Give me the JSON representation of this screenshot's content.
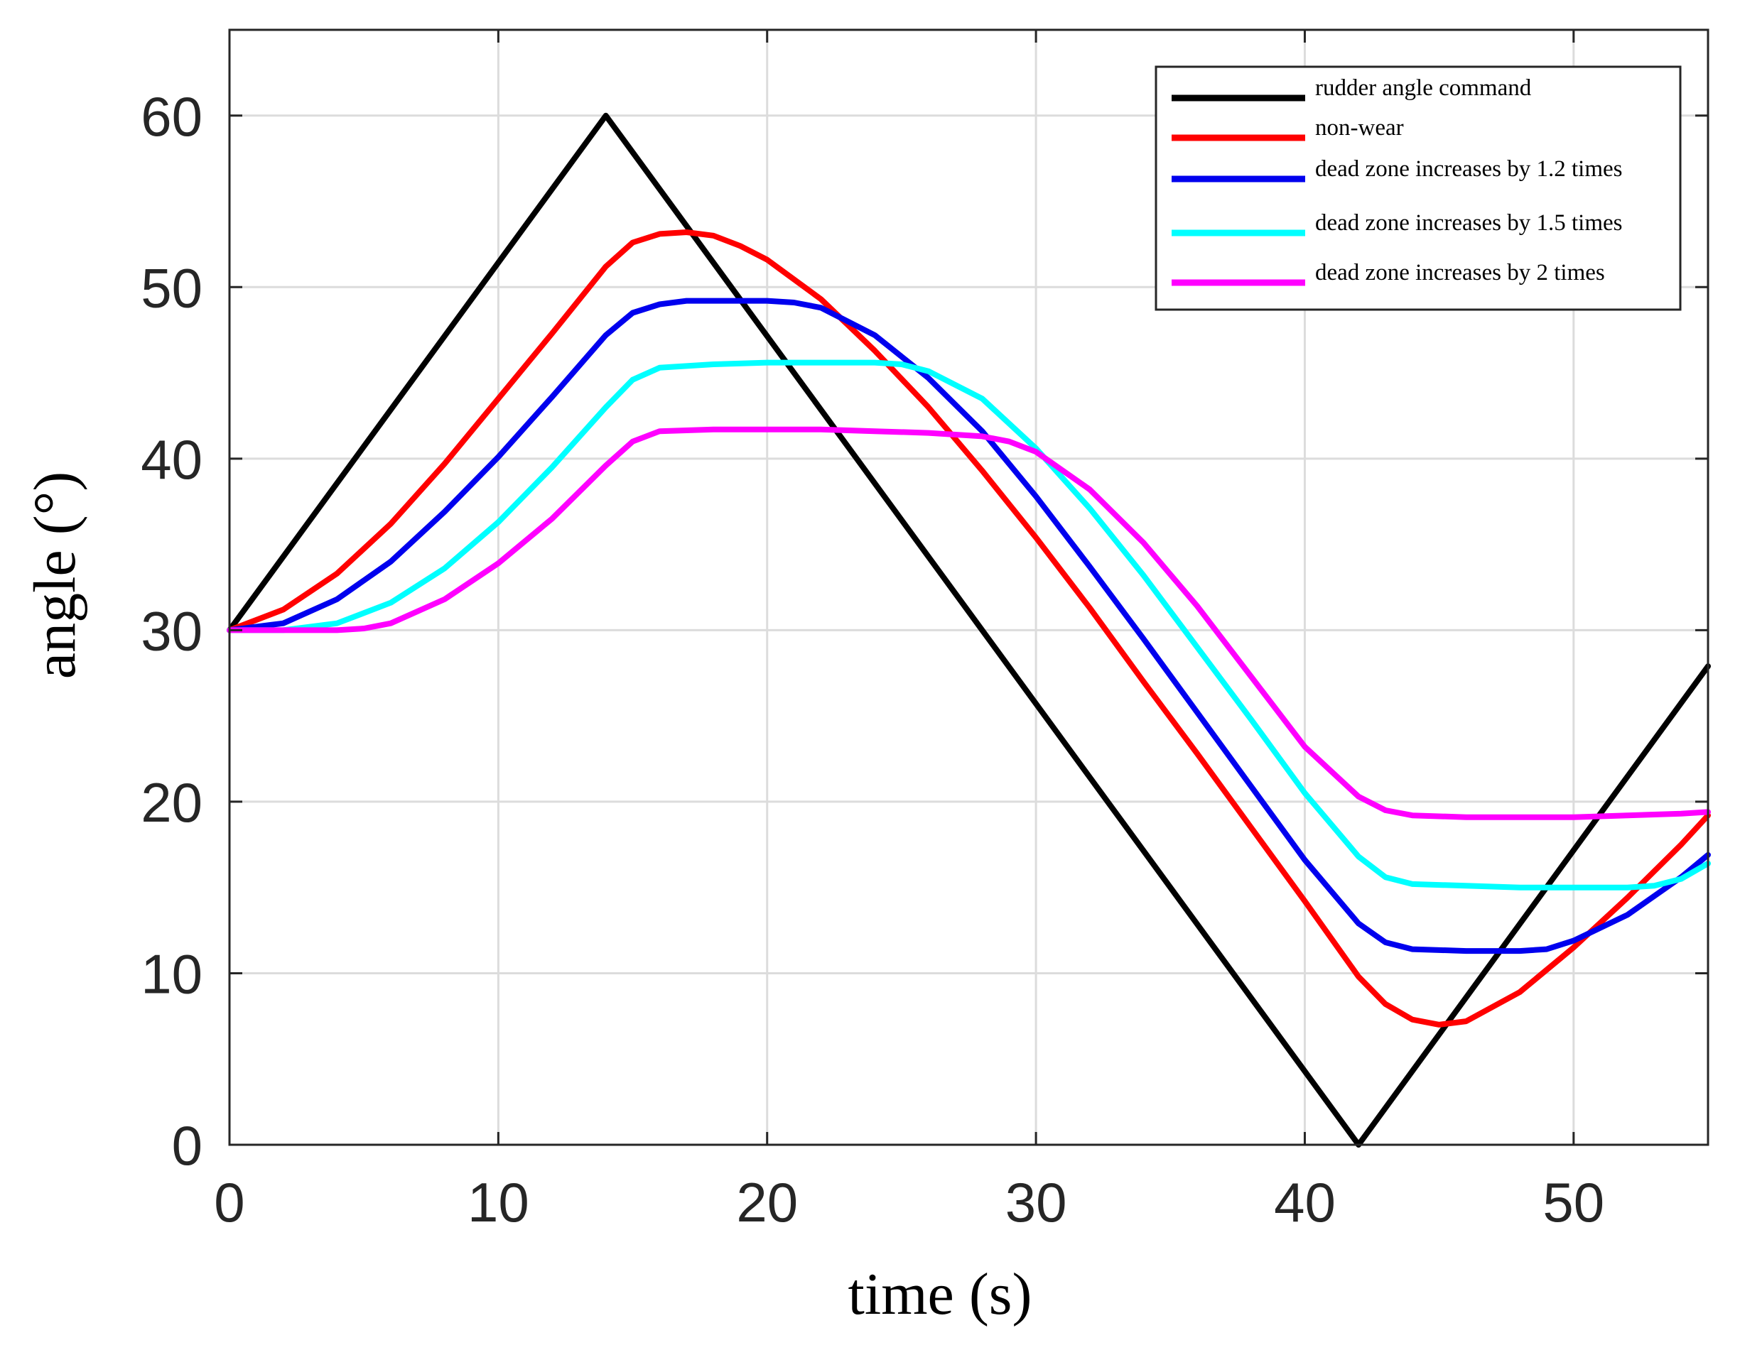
{
  "chart_data": {
    "type": "line",
    "title": "",
    "xlabel": "time (s)",
    "ylabel": "angle (°)",
    "xlim": [
      0,
      55
    ],
    "ylim": [
      0,
      65
    ],
    "xticks": [
      0,
      10,
      20,
      30,
      40,
      50
    ],
    "yticks": [
      0,
      10,
      20,
      30,
      40,
      50,
      60
    ],
    "grid": true,
    "legend_position": "top-right",
    "series": [
      {
        "name": "rudder angle command",
        "color": "#000000",
        "points": [
          [
            0,
            30
          ],
          [
            14,
            60
          ],
          [
            42,
            0
          ],
          [
            55,
            27.9
          ]
        ]
      },
      {
        "name": "non-wear",
        "color": "#ff0000",
        "points": [
          [
            0,
            30
          ],
          [
            2,
            31.2
          ],
          [
            4,
            33.3
          ],
          [
            6,
            36.2
          ],
          [
            8,
            39.7
          ],
          [
            10,
            43.5
          ],
          [
            12,
            47.3
          ],
          [
            14,
            51.2
          ],
          [
            15,
            52.6
          ],
          [
            16,
            53.1
          ],
          [
            17,
            53.2
          ],
          [
            18,
            53.0
          ],
          [
            19,
            52.4
          ],
          [
            20,
            51.6
          ],
          [
            22,
            49.3
          ],
          [
            24,
            46.3
          ],
          [
            26,
            43.0
          ],
          [
            28,
            39.3
          ],
          [
            30,
            35.4
          ],
          [
            32,
            31.3
          ],
          [
            34,
            27.0
          ],
          [
            36,
            22.8
          ],
          [
            38,
            18.5
          ],
          [
            40,
            14.2
          ],
          [
            42,
            9.8
          ],
          [
            43,
            8.2
          ],
          [
            44,
            7.3
          ],
          [
            45,
            7.0
          ],
          [
            46,
            7.2
          ],
          [
            48,
            8.9
          ],
          [
            50,
            11.5
          ],
          [
            52,
            14.4
          ],
          [
            54,
            17.5
          ],
          [
            55,
            19.2
          ]
        ]
      },
      {
        "name": "dead zone increases by 1.2 times",
        "color": "#0000ee",
        "points": [
          [
            0,
            30
          ],
          [
            2,
            30.4
          ],
          [
            4,
            31.8
          ],
          [
            6,
            34.0
          ],
          [
            8,
            36.9
          ],
          [
            10,
            40.1
          ],
          [
            12,
            43.6
          ],
          [
            14,
            47.2
          ],
          [
            15,
            48.5
          ],
          [
            16,
            49.0
          ],
          [
            17,
            49.2
          ],
          [
            18,
            49.2
          ],
          [
            20,
            49.2
          ],
          [
            21,
            49.1
          ],
          [
            22,
            48.8
          ],
          [
            24,
            47.2
          ],
          [
            26,
            44.7
          ],
          [
            28,
            41.6
          ],
          [
            30,
            37.8
          ],
          [
            32,
            33.7
          ],
          [
            34,
            29.5
          ],
          [
            36,
            25.2
          ],
          [
            38,
            20.9
          ],
          [
            40,
            16.6
          ],
          [
            42,
            12.9
          ],
          [
            43,
            11.8
          ],
          [
            44,
            11.4
          ],
          [
            46,
            11.3
          ],
          [
            48,
            11.3
          ],
          [
            49,
            11.4
          ],
          [
            50,
            11.9
          ],
          [
            52,
            13.4
          ],
          [
            54,
            15.6
          ],
          [
            55,
            16.9
          ]
        ]
      },
      {
        "name": "dead zone increases by 1.5 times",
        "color": "#00ffff",
        "points": [
          [
            0,
            30
          ],
          [
            2,
            30.0
          ],
          [
            4,
            30.4
          ],
          [
            6,
            31.6
          ],
          [
            8,
            33.6
          ],
          [
            10,
            36.3
          ],
          [
            12,
            39.5
          ],
          [
            14,
            43.0
          ],
          [
            15,
            44.6
          ],
          [
            16,
            45.3
          ],
          [
            18,
            45.5
          ],
          [
            20,
            45.6
          ],
          [
            22,
            45.6
          ],
          [
            24,
            45.6
          ],
          [
            25,
            45.5
          ],
          [
            26,
            45.1
          ],
          [
            28,
            43.5
          ],
          [
            30,
            40.6
          ],
          [
            32,
            37.1
          ],
          [
            34,
            33.2
          ],
          [
            36,
            29.0
          ],
          [
            38,
            24.8
          ],
          [
            40,
            20.5
          ],
          [
            42,
            16.8
          ],
          [
            43,
            15.6
          ],
          [
            44,
            15.2
          ],
          [
            46,
            15.1
          ],
          [
            48,
            15.0
          ],
          [
            50,
            15.0
          ],
          [
            52,
            15.0
          ],
          [
            53,
            15.1
          ],
          [
            54,
            15.5
          ],
          [
            55,
            16.4
          ]
        ]
      },
      {
        "name": "dead zone increases by 2 times",
        "color": "#ff00ff",
        "points": [
          [
            0,
            30
          ],
          [
            2,
            30.0
          ],
          [
            4,
            30.0
          ],
          [
            5,
            30.1
          ],
          [
            6,
            30.4
          ],
          [
            8,
            31.8
          ],
          [
            10,
            33.9
          ],
          [
            12,
            36.5
          ],
          [
            14,
            39.6
          ],
          [
            15,
            41.0
          ],
          [
            16,
            41.6
          ],
          [
            18,
            41.7
          ],
          [
            20,
            41.7
          ],
          [
            22,
            41.7
          ],
          [
            24,
            41.6
          ],
          [
            26,
            41.5
          ],
          [
            28,
            41.3
          ],
          [
            29,
            41.0
          ],
          [
            30,
            40.4
          ],
          [
            32,
            38.2
          ],
          [
            34,
            35.1
          ],
          [
            36,
            31.4
          ],
          [
            38,
            27.3
          ],
          [
            40,
            23.2
          ],
          [
            42,
            20.3
          ],
          [
            43,
            19.5
          ],
          [
            44,
            19.2
          ],
          [
            46,
            19.1
          ],
          [
            48,
            19.1
          ],
          [
            50,
            19.1
          ],
          [
            52,
            19.2
          ],
          [
            54,
            19.3
          ],
          [
            55,
            19.4
          ]
        ]
      }
    ]
  }
}
